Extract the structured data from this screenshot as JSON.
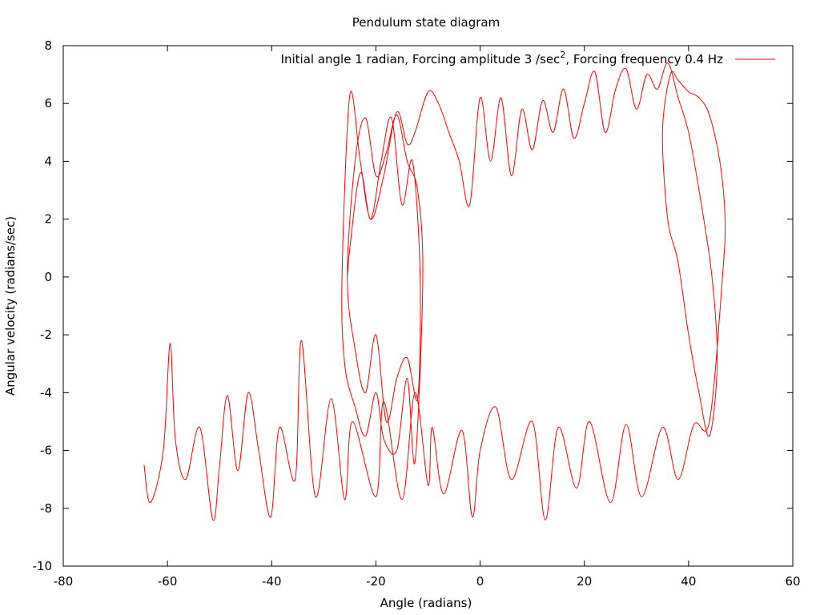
{
  "chart_data": {
    "type": "line",
    "title": "Pendulum state diagram",
    "xlabel": "Angle (radians)",
    "ylabel": "Angular velocity (radians/sec)",
    "xlim": [
      -80,
      60
    ],
    "ylim": [
      -10,
      8
    ],
    "x_ticks": [
      -80,
      -60,
      -40,
      -20,
      0,
      20,
      40,
      60
    ],
    "y_ticks": [
      -10,
      -8,
      -6,
      -4,
      -2,
      0,
      2,
      4,
      6,
      8
    ],
    "grid": false,
    "legend_position": "top-right",
    "legend": {
      "before_sup": "Initial angle 1 radian, Forcing amplitude 3 /sec",
      "sup": "2",
      "after_sup": ", Forcing frequency 0.4 Hz"
    },
    "series": [
      {
        "color": "#ff0000",
        "initial_angle": 1,
        "forcing_amplitude": 3,
        "forcing_frequency": 0.4,
        "x": [
          -64.5,
          -63.3,
          -60.8,
          -59.5,
          -58.5,
          -56.5,
          -53.8,
          -51.3,
          -50.0,
          -48.5,
          -46.5,
          -44.5,
          -42.5,
          -40.2,
          -38.5,
          -35.5,
          -34.3,
          -31.6,
          -28.6,
          -26.0,
          -24.5,
          -20.0,
          -18.5,
          -15.0,
          -12.5,
          -10.0,
          -9.2,
          -7.0,
          -3.5,
          -1.5,
          0.0,
          3.0,
          6.0,
          10.0,
          12.5,
          15.0,
          18.5,
          21.0,
          25.0,
          28.0,
          31.0,
          35.0,
          38.0,
          41.0,
          44.0,
          46.5,
          47.0,
          46.0,
          44.0,
          42.0,
          40.0,
          38.0,
          36.5,
          35.0,
          36.0,
          38.0,
          40.0,
          42.0,
          44.0,
          45.5,
          44.5,
          42.0,
          40.0,
          38.0,
          36.0,
          34.0,
          32.0,
          30.0,
          28.0,
          26.0,
          24.0,
          22.0,
          20.0,
          18.0,
          16.0,
          14.0,
          12.0,
          10.0,
          8.0,
          6.0,
          4.0,
          2.0,
          0.0,
          -2.0,
          -4.0,
          -6.0,
          -8.0,
          -10.0,
          -12.5,
          -14.0,
          -16.0,
          -18.5,
          -21.0,
          -23.0,
          -25.0,
          -26.5,
          -26.0,
          -24.0,
          -22.0,
          -20.0,
          -18.5,
          -16.0,
          -14.0,
          -12.5,
          -11.0,
          -12.0,
          -14.0,
          -16.0,
          -18.0,
          -20.0,
          -22.0,
          -24.0,
          -25.5,
          -24.0,
          -22.0,
          -20.0,
          -18.0,
          -16.0,
          -14.0,
          -12.0,
          -11.5,
          -13.0,
          -15.0,
          -17.0,
          -19.0,
          -21.0,
          -23.0,
          -25.0,
          -25.5
        ],
        "y": [
          -6.5,
          -7.8,
          -6.0,
          -2.3,
          -5.6,
          -7.0,
          -5.2,
          -8.4,
          -6.5,
          -4.1,
          -6.7,
          -4.0,
          -6.0,
          -8.3,
          -5.2,
          -7.0,
          -2.2,
          -7.6,
          -4.2,
          -7.7,
          -5.0,
          -7.6,
          -4.3,
          -7.7,
          -4.0,
          -7.2,
          -5.2,
          -7.5,
          -5.3,
          -8.3,
          -6.0,
          -4.5,
          -7.0,
          -5.0,
          -8.4,
          -5.2,
          -7.3,
          -5.0,
          -7.8,
          -5.1,
          -7.6,
          -5.2,
          -7.0,
          -5.1,
          -5.0,
          0.0,
          2.0,
          4.0,
          5.6,
          6.2,
          6.4,
          6.8,
          7.0,
          5.0,
          2.0,
          0.5,
          -2.0,
          -4.0,
          -5.5,
          -3.0,
          0.0,
          3.0,
          5.0,
          6.2,
          7.4,
          6.5,
          7.0,
          5.8,
          7.2,
          6.5,
          5.0,
          7.1,
          6.0,
          4.8,
          6.5,
          5.0,
          6.1,
          4.4,
          5.8,
          3.5,
          6.2,
          4.0,
          6.2,
          2.5,
          4.0,
          5.0,
          6.0,
          6.4,
          5.0,
          4.6,
          5.7,
          3.5,
          2.0,
          4.0,
          6.3,
          0.0,
          -3.0,
          -4.5,
          -5.5,
          -4.0,
          -5.6,
          -6.0,
          -3.5,
          -6.4,
          0.0,
          3.0,
          4.0,
          5.6,
          4.3,
          3.5,
          5.5,
          4.0,
          0.0,
          -2.5,
          -4.0,
          -2.0,
          -5.0,
          -3.5,
          -2.8,
          -4.2,
          0.0,
          4.0,
          2.5,
          5.5,
          4.0,
          2.0,
          3.6,
          1.0,
          0.0
        ]
      }
    ]
  }
}
